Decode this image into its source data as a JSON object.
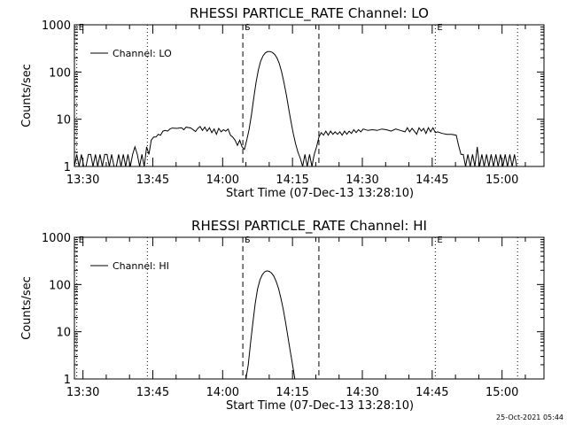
{
  "footer_timestamp": "25-Oct-2021 05:44",
  "chart_data": [
    {
      "type": "line",
      "title": "RHESSI PARTICLE_RATE Channel: LO",
      "xlabel": "Start Time (07-Dec-13 13:28:10)",
      "ylabel": "Counts/sec",
      "y_scale": "log",
      "ylim": [
        1,
        1000
      ],
      "xlim": [
        "13:28:10",
        "15:09:00"
      ],
      "x_ticks": [
        "13:30",
        "13:45",
        "14:00",
        "14:15",
        "14:30",
        "14:45",
        "15:00"
      ],
      "y_ticks": [
        "1",
        "10",
        "100",
        "1000"
      ],
      "legend": {
        "label": "Channel: LO",
        "placement": "top-left"
      },
      "markers": [
        {
          "time": "13:28:40",
          "style": "dotted",
          "label": "E"
        },
        {
          "time": "13:43:50",
          "style": "dotted",
          "label": ""
        },
        {
          "time": "14:04:20",
          "style": "dashed",
          "label": "S"
        },
        {
          "time": "14:20:40",
          "style": "dashed",
          "label": ""
        },
        {
          "time": "14:45:40",
          "style": "dotted",
          "label": "E"
        },
        {
          "time": "15:03:20",
          "style": "dotted",
          "label": ""
        }
      ],
      "series": [
        {
          "name": "Channel: LO",
          "points": [
            [
              "13:28:10",
              1.0
            ],
            [
              "13:28:40",
              1.8
            ],
            [
              "13:29:10",
              1.0
            ],
            [
              "13:29:40",
              1.8
            ],
            [
              "13:30:10",
              1.0
            ],
            [
              "13:30:40",
              1.0
            ],
            [
              "13:31:10",
              1.8
            ],
            [
              "13:31:40",
              1.8
            ],
            [
              "13:32:10",
              1.0
            ],
            [
              "13:32:40",
              1.8
            ],
            [
              "13:33:10",
              1.0
            ],
            [
              "13:33:40",
              1.8
            ],
            [
              "13:34:10",
              1.0
            ],
            [
              "13:34:40",
              1.8
            ],
            [
              "13:35:10",
              1.8
            ],
            [
              "13:35:40",
              1.0
            ],
            [
              "13:36:10",
              1.8
            ],
            [
              "13:36:40",
              1.0
            ],
            [
              "13:37:10",
              1.0
            ],
            [
              "13:37:40",
              1.8
            ],
            [
              "13:38:10",
              1.0
            ],
            [
              "13:38:40",
              1.8
            ],
            [
              "13:39:10",
              1.0
            ],
            [
              "13:39:40",
              1.8
            ],
            [
              "13:40:10",
              1.0
            ],
            [
              "13:40:40",
              1.8
            ],
            [
              "13:41:10",
              2.6
            ],
            [
              "13:41:40",
              1.8
            ],
            [
              "13:42:10",
              1.0
            ],
            [
              "13:42:40",
              1.8
            ],
            [
              "13:43:10",
              1.0
            ],
            [
              "13:43:40",
              2.6
            ],
            [
              "13:44:10",
              1.8
            ],
            [
              "13:44:40",
              3.6
            ],
            [
              "13:45:10",
              4.2
            ],
            [
              "13:45:40",
              4.2
            ],
            [
              "13:46:10",
              4.8
            ],
            [
              "13:46:40",
              4.6
            ],
            [
              "13:47:10",
              5.6
            ],
            [
              "13:47:40",
              5.8
            ],
            [
              "13:48:10",
              5.6
            ],
            [
              "13:48:40",
              6.2
            ],
            [
              "13:49:10",
              6.5
            ],
            [
              "13:50:10",
              6.4
            ],
            [
              "13:51:10",
              6.6
            ],
            [
              "13:51:40",
              6.0
            ],
            [
              "13:52:10",
              6.8
            ],
            [
              "13:53:10",
              6.5
            ],
            [
              "13:54:10",
              5.5
            ],
            [
              "13:54:40",
              6.4
            ],
            [
              "13:55:10",
              7.0
            ],
            [
              "13:55:40",
              5.8
            ],
            [
              "13:56:10",
              6.8
            ],
            [
              "13:56:40",
              5.6
            ],
            [
              "13:57:10",
              6.6
            ],
            [
              "13:57:40",
              5.2
            ],
            [
              "13:58:10",
              6.2
            ],
            [
              "13:58:40",
              4.8
            ],
            [
              "13:59:10",
              6.4
            ],
            [
              "13:59:40",
              5.4
            ],
            [
              "14:00:10",
              6.0
            ],
            [
              "14:00:40",
              5.6
            ],
            [
              "14:01:10",
              6.2
            ],
            [
              "14:01:40",
              4.6
            ],
            [
              "14:02:10",
              4.2
            ],
            [
              "14:02:40",
              3.6
            ],
            [
              "14:03:10",
              2.8
            ],
            [
              "14:03:40",
              3.6
            ],
            [
              "14:04:10",
              2.6
            ],
            [
              "14:04:40",
              2.3
            ],
            [
              "14:05:10",
              3.6
            ],
            [
              "14:05:40",
              6.0
            ],
            [
              "14:06:10",
              12
            ],
            [
              "14:06:40",
              28
            ],
            [
              "14:07:10",
              60
            ],
            [
              "14:07:40",
              110
            ],
            [
              "14:08:10",
              170
            ],
            [
              "14:08:40",
              220
            ],
            [
              "14:09:10",
              255
            ],
            [
              "14:09:40",
              270
            ],
            [
              "14:10:10",
              272
            ],
            [
              "14:10:40",
              260
            ],
            [
              "14:11:10",
              235
            ],
            [
              "14:11:40",
              200
            ],
            [
              "14:12:10",
              150
            ],
            [
              "14:12:40",
              100
            ],
            [
              "14:13:10",
              60
            ],
            [
              "14:13:40",
              33
            ],
            [
              "14:14:10",
              17
            ],
            [
              "14:14:40",
              9
            ],
            [
              "14:15:10",
              5
            ],
            [
              "14:15:40",
              3
            ],
            [
              "14:16:10",
              2
            ],
            [
              "14:16:40",
              1.5
            ],
            [
              "14:17:10",
              1.0
            ],
            [
              "14:17:40",
              1.8
            ],
            [
              "14:18:10",
              1.0
            ],
            [
              "14:18:40",
              1.8
            ],
            [
              "14:19:10",
              1.0
            ],
            [
              "14:19:40",
              1.8
            ],
            [
              "14:20:10",
              2.6
            ],
            [
              "14:20:40",
              4.2
            ],
            [
              "14:21:10",
              5.2
            ],
            [
              "14:21:40",
              4.6
            ],
            [
              "14:22:10",
              5.6
            ],
            [
              "14:22:40",
              4.6
            ],
            [
              "14:23:10",
              5.6
            ],
            [
              "14:23:40",
              4.8
            ],
            [
              "14:24:10",
              5.4
            ],
            [
              "14:24:40",
              4.8
            ],
            [
              "14:25:10",
              5.4
            ],
            [
              "14:25:40",
              4.6
            ],
            [
              "14:26:10",
              5.6
            ],
            [
              "14:26:40",
              4.8
            ],
            [
              "14:27:10",
              5.6
            ],
            [
              "14:27:40",
              5.0
            ],
            [
              "14:28:10",
              6.0
            ],
            [
              "14:28:40",
              5.2
            ],
            [
              "14:29:10",
              6.0
            ],
            [
              "14:29:40",
              5.4
            ],
            [
              "14:30:10",
              6.2
            ],
            [
              "14:31:10",
              5.8
            ],
            [
              "14:32:10",
              6.0
            ],
            [
              "14:33:10",
              5.8
            ],
            [
              "14:34:10",
              6.2
            ],
            [
              "14:35:10",
              6.0
            ],
            [
              "14:36:10",
              5.6
            ],
            [
              "14:37:10",
              6.2
            ],
            [
              "14:38:10",
              5.8
            ],
            [
              "14:39:10",
              5.4
            ],
            [
              "14:39:40",
              6.6
            ],
            [
              "14:40:10",
              5.4
            ],
            [
              "14:40:40",
              6.4
            ],
            [
              "14:41:10",
              5.6
            ],
            [
              "14:41:40",
              4.8
            ],
            [
              "14:42:10",
              6.6
            ],
            [
              "14:42:40",
              5.6
            ],
            [
              "14:43:10",
              6.4
            ],
            [
              "14:43:40",
              5.0
            ],
            [
              "14:44:10",
              6.6
            ],
            [
              "14:44:40",
              5.4
            ],
            [
              "14:45:10",
              6.6
            ],
            [
              "14:45:40",
              5.2
            ],
            [
              "14:46:10",
              5.4
            ],
            [
              "14:47:10",
              5.0
            ],
            [
              "14:48:10",
              4.8
            ],
            [
              "14:49:10",
              4.8
            ],
            [
              "14:50:10",
              4.6
            ],
            [
              "14:50:40",
              2.8
            ],
            [
              "14:51:10",
              1.8
            ],
            [
              "14:51:40",
              1.8
            ],
            [
              "14:52:10",
              1.0
            ],
            [
              "14:52:40",
              1.8
            ],
            [
              "14:53:10",
              1.0
            ],
            [
              "14:53:40",
              1.8
            ],
            [
              "14:54:10",
              1.0
            ],
            [
              "14:54:40",
              2.6
            ],
            [
              "14:55:10",
              1.0
            ],
            [
              "14:55:40",
              1.8
            ],
            [
              "14:56:10",
              1.0
            ],
            [
              "14:56:40",
              1.8
            ],
            [
              "14:57:10",
              1.0
            ],
            [
              "14:57:40",
              1.8
            ],
            [
              "14:58:10",
              1.0
            ],
            [
              "14:58:40",
              1.8
            ],
            [
              "14:59:10",
              1.0
            ],
            [
              "14:59:40",
              1.8
            ],
            [
              "15:00:10",
              1.0
            ],
            [
              "15:00:40",
              1.8
            ],
            [
              "15:01:10",
              1.0
            ],
            [
              "15:01:40",
              1.8
            ],
            [
              "15:02:10",
              1.0
            ],
            [
              "15:02:40",
              1.8
            ],
            [
              "15:03:10",
              1.0
            ]
          ]
        }
      ]
    },
    {
      "type": "line",
      "title": "RHESSI PARTICLE_RATE Channel: HI",
      "xlabel": "Start Time (07-Dec-13 13:28:10)",
      "ylabel": "Counts/sec",
      "y_scale": "log",
      "ylim": [
        1,
        1000
      ],
      "xlim": [
        "13:28:10",
        "15:09:00"
      ],
      "x_ticks": [
        "13:30",
        "13:45",
        "14:00",
        "14:15",
        "14:30",
        "14:45",
        "15:00"
      ],
      "y_ticks": [
        "1",
        "10",
        "100",
        "1000"
      ],
      "legend": {
        "label": "Channel: HI",
        "placement": "top-left"
      },
      "markers": [
        {
          "time": "13:28:40",
          "style": "dotted",
          "label": "E"
        },
        {
          "time": "13:43:50",
          "style": "dotted",
          "label": ""
        },
        {
          "time": "14:04:20",
          "style": "dashed",
          "label": "S"
        },
        {
          "time": "14:20:40",
          "style": "dashed",
          "label": ""
        },
        {
          "time": "14:45:40",
          "style": "dotted",
          "label": "E"
        },
        {
          "time": "15:03:20",
          "style": "dotted",
          "label": ""
        }
      ],
      "series": [
        {
          "name": "Channel: HI",
          "points": [
            [
              "14:05:00",
              1.0
            ],
            [
              "14:05:30",
              2.0
            ],
            [
              "14:06:00",
              6
            ],
            [
              "14:06:30",
              16
            ],
            [
              "14:07:00",
              40
            ],
            [
              "14:07:30",
              80
            ],
            [
              "14:08:00",
              125
            ],
            [
              "14:08:30",
              160
            ],
            [
              "14:09:00",
              185
            ],
            [
              "14:09:30",
              195
            ],
            [
              "14:10:00",
              190
            ],
            [
              "14:10:30",
              175
            ],
            [
              "14:11:00",
              150
            ],
            [
              "14:11:30",
              115
            ],
            [
              "14:12:00",
              82
            ],
            [
              "14:12:30",
              52
            ],
            [
              "14:13:00",
              30
            ],
            [
              "14:13:30",
              16
            ],
            [
              "14:14:00",
              8
            ],
            [
              "14:14:30",
              4
            ],
            [
              "14:15:00",
              2
            ],
            [
              "14:15:30",
              1.0
            ]
          ]
        }
      ]
    }
  ]
}
